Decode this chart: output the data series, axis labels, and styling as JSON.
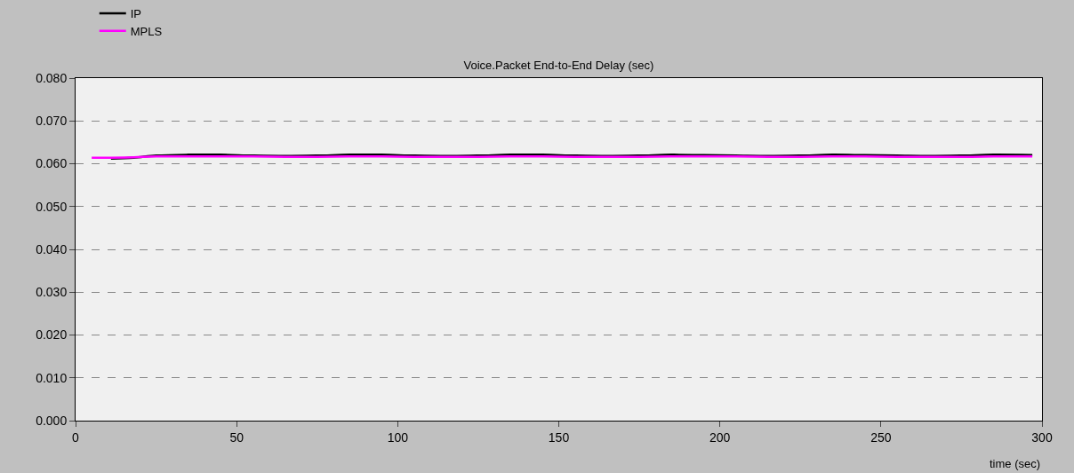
{
  "chart_data": {
    "type": "line",
    "title": "Voice.Packet End-to-End Delay (sec)",
    "xlabel": "time (sec)",
    "xlim": [
      0,
      300
    ],
    "xticks": [
      0,
      50,
      100,
      150,
      200,
      250,
      300
    ],
    "ylim": [
      0,
      0.08
    ],
    "yticks": [
      {
        "value": 0,
        "label": "0.000"
      },
      {
        "value": 0.01,
        "label": "0.010"
      },
      {
        "value": 0.02,
        "label": "0.020"
      },
      {
        "value": 0.03,
        "label": "0.030"
      },
      {
        "value": 0.04,
        "label": "0.040"
      },
      {
        "value": 0.05,
        "label": "0.050"
      },
      {
        "value": 0.06,
        "label": "0.060"
      },
      {
        "value": 0.07,
        "label": "0.070"
      },
      {
        "value": 0.08,
        "label": "0.080"
      }
    ],
    "grid": "y",
    "legend": "top left",
    "line_style": "solid",
    "series": [
      {
        "name": "IP",
        "color": "#000000",
        "x": [
          11,
          18,
          25,
          35,
          45,
          55,
          65,
          75,
          85,
          95,
          105,
          115,
          125,
          135,
          145,
          155,
          165,
          175,
          185,
          195,
          205,
          215,
          225,
          235,
          245,
          255,
          265,
          275,
          285,
          297
        ],
        "values": [
          0.0612,
          0.0614,
          0.0619,
          0.0621,
          0.0621,
          0.0619,
          0.0618,
          0.0619,
          0.0621,
          0.0621,
          0.0619,
          0.0618,
          0.0619,
          0.0621,
          0.0621,
          0.0619,
          0.0618,
          0.0619,
          0.0621,
          0.062,
          0.0619,
          0.0618,
          0.0619,
          0.0621,
          0.062,
          0.0619,
          0.0618,
          0.0619,
          0.0621,
          0.062
        ]
      },
      {
        "name": "MPLS",
        "color": "#ff00ff",
        "x": [
          5,
          11,
          18,
          25,
          35,
          45,
          55,
          65,
          75,
          85,
          95,
          105,
          115,
          125,
          135,
          145,
          155,
          165,
          175,
          185,
          195,
          205,
          215,
          225,
          235,
          245,
          255,
          265,
          275,
          285,
          297
        ],
        "values": [
          0.0614,
          0.0614,
          0.0615,
          0.0617,
          0.0617,
          0.0617,
          0.0617,
          0.0616,
          0.0616,
          0.0617,
          0.0617,
          0.0616,
          0.0616,
          0.0616,
          0.0617,
          0.0617,
          0.0616,
          0.0616,
          0.0616,
          0.0617,
          0.0617,
          0.0617,
          0.0616,
          0.0616,
          0.0617,
          0.0617,
          0.0616,
          0.0616,
          0.0616,
          0.0617,
          0.0617
        ]
      }
    ]
  }
}
